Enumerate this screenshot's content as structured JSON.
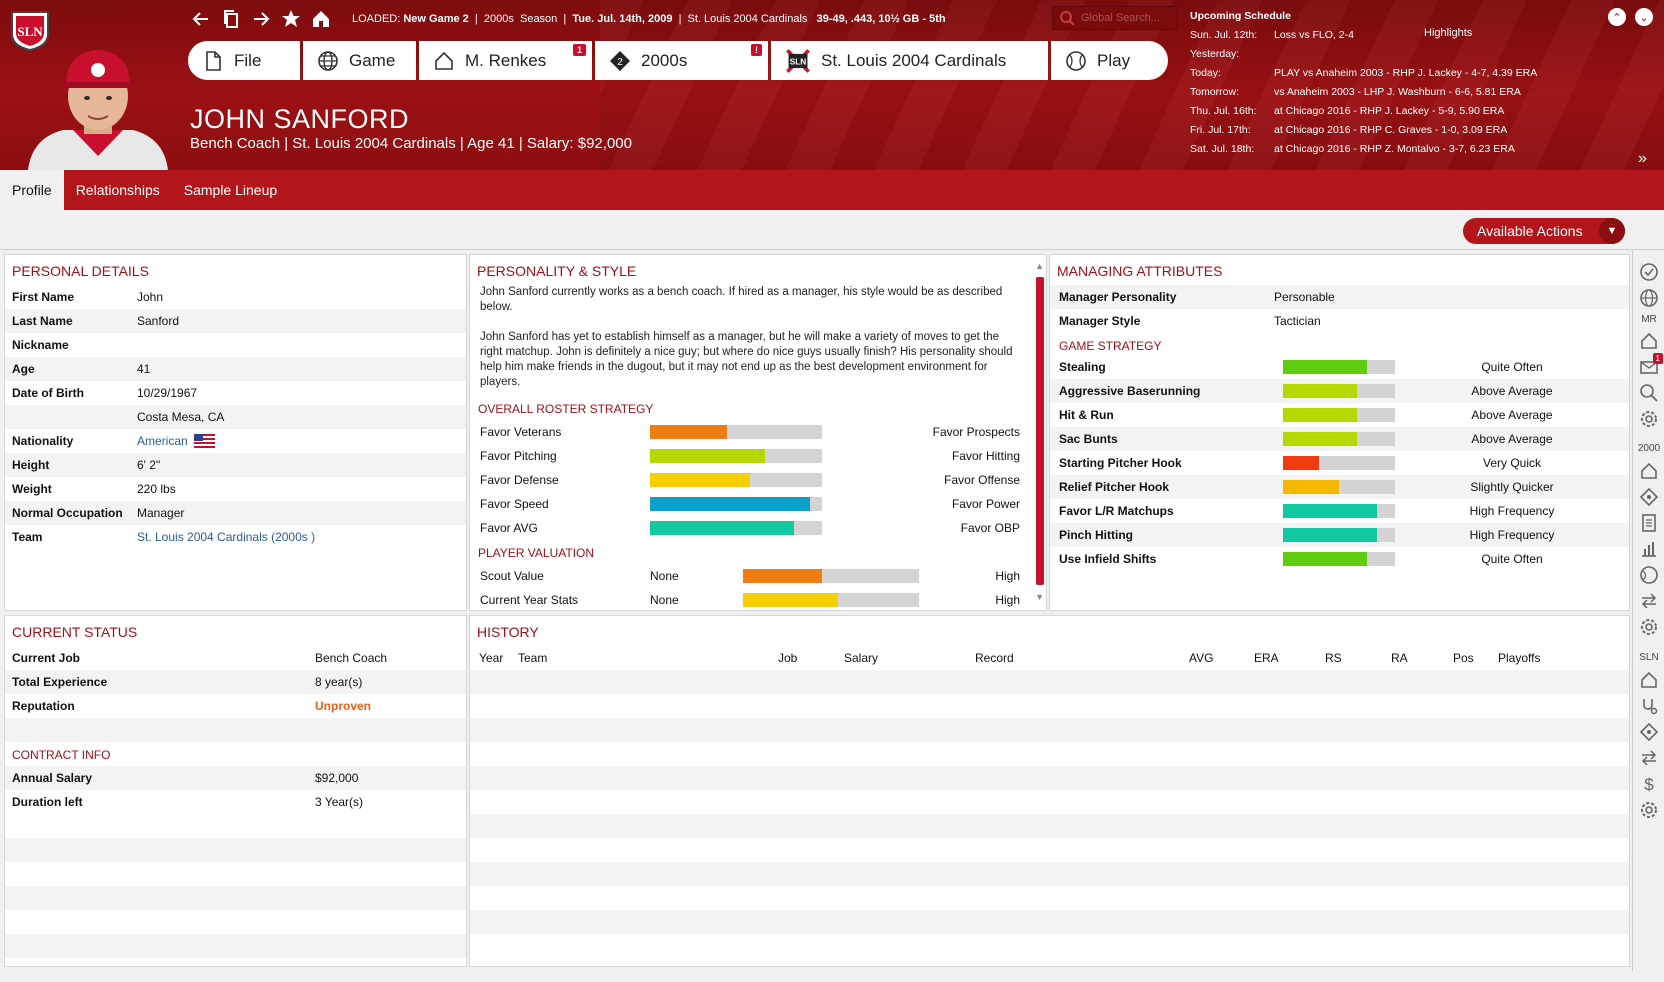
{
  "header": {
    "logo_text": "SLN",
    "loaded_label": "LOADED:",
    "loaded_game": "New Game 2",
    "era": "2000s",
    "season": "Season",
    "date": "Tue. Jul. 14th, 2009",
    "team": "St. Louis 2004 Cardinals",
    "record": "39-49, .443, 10½ GB - 5th",
    "search_placeholder": "Global Search...",
    "nav": [
      {
        "label": "File",
        "icon": "file-icon",
        "badge": ""
      },
      {
        "label": "Game",
        "icon": "globe-icon",
        "badge": ""
      },
      {
        "label": "M. Renkes",
        "icon": "home-icon",
        "badge": "1"
      },
      {
        "label": "2000s",
        "icon": "league-diamond-icon",
        "badge": "!"
      },
      {
        "label": "St. Louis 2004 Cardinals",
        "icon": "team-logo-icon",
        "badge": ""
      },
      {
        "label": "Play",
        "icon": "baseball-icon",
        "badge": ""
      }
    ],
    "person_name": "JOHN SANFORD",
    "person_sub": "Bench Coach | St. Louis 2004 Cardinals  |  Age 41  |  Salary: $92,000"
  },
  "schedule": {
    "title": "Upcoming Schedule",
    "highlights": "Highlights",
    "rows": [
      {
        "day": "Sun. Jul. 12th:",
        "value": "Loss vs FLO, 2-4"
      },
      {
        "day": "Yesterday:",
        "value": ""
      },
      {
        "day": "Today:",
        "value": "PLAY vs Anaheim 2003 - RHP J. Lackey - 4-7, 4.39 ERA"
      },
      {
        "day": "Tomorrow:",
        "value": "vs Anaheim 2003 - LHP J. Washburn - 6-6, 5.81 ERA"
      },
      {
        "day": "Thu. Jul. 16th:",
        "value": "at Chicago 2016 - RHP J. Lackey - 5-9, 5.90 ERA"
      },
      {
        "day": "Fri. Jul. 17th:",
        "value": "at Chicago 2016 - RHP C. Graves - 1-0, 3.09 ERA"
      },
      {
        "day": "Sat. Jul. 18th:",
        "value": "at Chicago 2016 - RHP Z. Montalvo - 3-7, 6.23 ERA"
      }
    ]
  },
  "tabs": [
    "Profile",
    "Relationships",
    "Sample Lineup"
  ],
  "available_actions": "Available Actions",
  "personal": {
    "title": "PERSONAL DETAILS",
    "rows": [
      {
        "k": "First Name",
        "v": "John"
      },
      {
        "k": "Last Name",
        "v": "Sanford"
      },
      {
        "k": "Nickname",
        "v": ""
      },
      {
        "k": "Age",
        "v": "41"
      },
      {
        "k": "Date of Birth",
        "v": "10/29/1967"
      },
      {
        "k": "",
        "v": "Costa Mesa, CA"
      },
      {
        "k": "Nationality",
        "v": "American"
      },
      {
        "k": "Height",
        "v": "6' 2\""
      },
      {
        "k": "Weight",
        "v": "220 lbs"
      },
      {
        "k": "Normal Occupation",
        "v": "Manager"
      },
      {
        "k": "Team",
        "v": "St. Louis 2004 Cardinals (2000s )"
      }
    ]
  },
  "personality": {
    "title": "PERSONALITY & STYLE",
    "p1": "John Sanford currently works as a bench coach. If hired as a manager, his style would be as described below.",
    "p2": "John Sanford has yet to establish himself as a manager, but he will make a variety of moves to get the right matchup. John is definitely a nice guy; but where do nice guys usually finish? His personality should help him make friends in the dugout, but it may not end up as the best development environment for players.",
    "roster_title": "OVERALL ROSTER STRATEGY",
    "roster": [
      {
        "left": "Favor Veterans",
        "right": "Favor Prospects",
        "value": 0.45,
        "color": "#f07d12"
      },
      {
        "left": "Favor Pitching",
        "right": "Favor Hitting",
        "value": 0.67,
        "color": "#b5d800"
      },
      {
        "left": "Favor Defense",
        "right": "Favor Offense",
        "value": 0.58,
        "color": "#f5cf00"
      },
      {
        "left": "Favor Speed",
        "right": "Favor Power",
        "value": 0.93,
        "color": "#0aa0c8"
      },
      {
        "left": "Favor AVG",
        "right": "Favor OBP",
        "value": 0.84,
        "color": "#12c8a0"
      }
    ],
    "valuation_title": "PLAYER VALUATION",
    "valuation": [
      {
        "label": "Scout Value",
        "low": "None",
        "high": "High",
        "value": 0.45,
        "color": "#f07d12"
      },
      {
        "label": "Current Year Stats",
        "low": "None",
        "high": "High",
        "value": 0.54,
        "color": "#f5cf00"
      }
    ]
  },
  "managing": {
    "title": "MANAGING ATTRIBUTES",
    "personality_label": "Manager Personality",
    "personality_value": "Personable",
    "style_label": "Manager Style",
    "style_value": "Tactician",
    "strategy_title": "GAME STRATEGY",
    "strategy": [
      {
        "label": "Stealing",
        "value": 0.75,
        "color": "#5fcc12",
        "text": "Quite Often"
      },
      {
        "label": "Aggressive Baserunning",
        "value": 0.66,
        "color": "#b5d800",
        "text": "Above Average"
      },
      {
        "label": "Hit & Run",
        "value": 0.66,
        "color": "#b5d800",
        "text": "Above Average"
      },
      {
        "label": "Sac Bunts",
        "value": 0.66,
        "color": "#b5d800",
        "text": "Above Average"
      },
      {
        "label": "Starting Pitcher Hook",
        "value": 0.32,
        "color": "#f03c12",
        "text": "Very Quick"
      },
      {
        "label": "Relief Pitcher Hook",
        "value": 0.5,
        "color": "#f5b800",
        "text": "Slightly Quicker"
      },
      {
        "label": "Favor L/R Matchups",
        "value": 0.84,
        "color": "#12c8a0",
        "text": "High Frequency"
      },
      {
        "label": "Pinch Hitting",
        "value": 0.84,
        "color": "#12c8a0",
        "text": "High Frequency"
      },
      {
        "label": "Use Infield Shifts",
        "value": 0.75,
        "color": "#5fcc12",
        "text": "Quite Often"
      }
    ]
  },
  "status": {
    "title": "CURRENT STATUS",
    "rows": [
      {
        "k": "Current Job",
        "v": "Bench Coach"
      },
      {
        "k": "Total Experience",
        "v": "8 year(s)"
      },
      {
        "k": "Reputation",
        "v": "Unproven"
      }
    ],
    "contract_title": "CONTRACT INFO",
    "contract": [
      {
        "k": "Annual Salary",
        "v": "$92,000"
      },
      {
        "k": "Duration left",
        "v": "3 Year(s)"
      }
    ]
  },
  "history": {
    "title": "HISTORY",
    "columns": [
      "Year",
      "Team",
      "Job",
      "Salary",
      "Record",
      "AVG",
      "ERA",
      "RS",
      "RA",
      "Pos",
      "Playoffs"
    ]
  },
  "sidebar": {
    "labels": [
      "MR",
      "2000",
      "SLN"
    ],
    "badge": "1",
    "icons": [
      "check-circle-icon",
      "globe-icon",
      "home-icon",
      "mail-icon",
      "search-icon",
      "gear-icon",
      "home-icon",
      "diamond-icon",
      "list-icon",
      "bar-chart-icon",
      "baseball-icon",
      "trade-arrows-icon",
      "gear-icon",
      "home-icon",
      "stethoscope-icon",
      "diamond-icon",
      "trade-arrows-icon",
      "dollar-icon",
      "gear-icon"
    ]
  },
  "colors": {
    "brand_red": "#9c1114",
    "tab_red": "#b3161a",
    "title_red": "#a01015",
    "link": "#2a5a9e",
    "warning_orange": "#e8601c"
  }
}
